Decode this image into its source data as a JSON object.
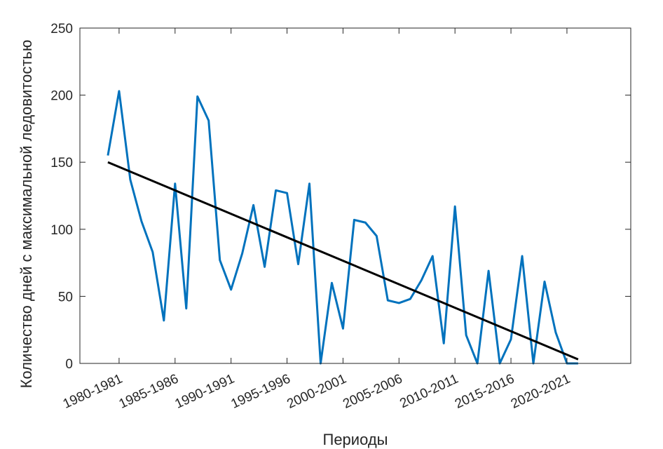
{
  "chart_data": {
    "type": "line",
    "title": "",
    "xlabel": "Периоды",
    "ylabel": "Количество дней с максимальной ледовитостью",
    "ylim": [
      0,
      250
    ],
    "y_ticks": [
      0,
      50,
      100,
      150,
      200,
      250
    ],
    "x_tick_labels": [
      "1980-1981",
      "1985-1986",
      "1990-1991",
      "1995-1996",
      "2000-2001",
      "2005-2006",
      "2010-2011",
      "2015-2016",
      "2020-2021"
    ],
    "grid": false,
    "series": [
      {
        "color": "#0072BD",
        "values": [
          155,
          203,
          137,
          106,
          83,
          32,
          134,
          41,
          199,
          181,
          77,
          55,
          82,
          118,
          72,
          129,
          127,
          74,
          134,
          0,
          60,
          26,
          107,
          105,
          95,
          47,
          45,
          48,
          62,
          80,
          15,
          117,
          21,
          0,
          69,
          0,
          18,
          80,
          0,
          61,
          23,
          0,
          0
        ]
      },
      {
        "color": "#000000",
        "trend": true,
        "start": [
          1979,
          150
        ],
        "end": [
          2021,
          3
        ]
      }
    ]
  }
}
